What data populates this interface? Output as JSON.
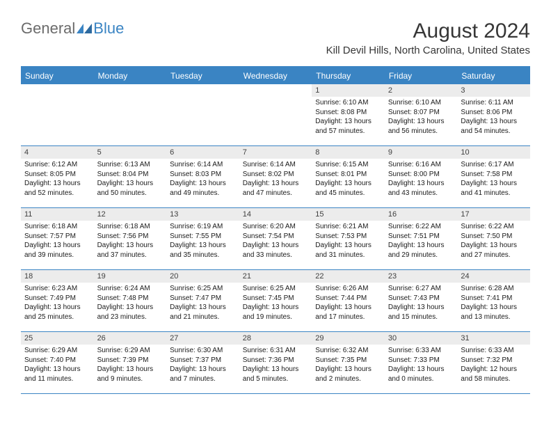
{
  "logo": {
    "word1": "General",
    "word2": "Blue"
  },
  "title": "August 2024",
  "location": "Kill Devil Hills, North Carolina, United States",
  "colors": {
    "accent": "#3a84c3",
    "header_text": "#ffffff",
    "daynum_bg": "#ececec",
    "body_text": "#1a1a1a",
    "logo_gray": "#6b6b6b"
  },
  "day_names": [
    "Sunday",
    "Monday",
    "Tuesday",
    "Wednesday",
    "Thursday",
    "Friday",
    "Saturday"
  ],
  "weeks": [
    [
      {
        "day": "",
        "sunrise": "",
        "sunset": "",
        "daylight": ""
      },
      {
        "day": "",
        "sunrise": "",
        "sunset": "",
        "daylight": ""
      },
      {
        "day": "",
        "sunrise": "",
        "sunset": "",
        "daylight": ""
      },
      {
        "day": "",
        "sunrise": "",
        "sunset": "",
        "daylight": ""
      },
      {
        "day": "1",
        "sunrise": "Sunrise: 6:10 AM",
        "sunset": "Sunset: 8:08 PM",
        "daylight": "Daylight: 13 hours and 57 minutes."
      },
      {
        "day": "2",
        "sunrise": "Sunrise: 6:10 AM",
        "sunset": "Sunset: 8:07 PM",
        "daylight": "Daylight: 13 hours and 56 minutes."
      },
      {
        "day": "3",
        "sunrise": "Sunrise: 6:11 AM",
        "sunset": "Sunset: 8:06 PM",
        "daylight": "Daylight: 13 hours and 54 minutes."
      }
    ],
    [
      {
        "day": "4",
        "sunrise": "Sunrise: 6:12 AM",
        "sunset": "Sunset: 8:05 PM",
        "daylight": "Daylight: 13 hours and 52 minutes."
      },
      {
        "day": "5",
        "sunrise": "Sunrise: 6:13 AM",
        "sunset": "Sunset: 8:04 PM",
        "daylight": "Daylight: 13 hours and 50 minutes."
      },
      {
        "day": "6",
        "sunrise": "Sunrise: 6:14 AM",
        "sunset": "Sunset: 8:03 PM",
        "daylight": "Daylight: 13 hours and 49 minutes."
      },
      {
        "day": "7",
        "sunrise": "Sunrise: 6:14 AM",
        "sunset": "Sunset: 8:02 PM",
        "daylight": "Daylight: 13 hours and 47 minutes."
      },
      {
        "day": "8",
        "sunrise": "Sunrise: 6:15 AM",
        "sunset": "Sunset: 8:01 PM",
        "daylight": "Daylight: 13 hours and 45 minutes."
      },
      {
        "day": "9",
        "sunrise": "Sunrise: 6:16 AM",
        "sunset": "Sunset: 8:00 PM",
        "daylight": "Daylight: 13 hours and 43 minutes."
      },
      {
        "day": "10",
        "sunrise": "Sunrise: 6:17 AM",
        "sunset": "Sunset: 7:58 PM",
        "daylight": "Daylight: 13 hours and 41 minutes."
      }
    ],
    [
      {
        "day": "11",
        "sunrise": "Sunrise: 6:18 AM",
        "sunset": "Sunset: 7:57 PM",
        "daylight": "Daylight: 13 hours and 39 minutes."
      },
      {
        "day": "12",
        "sunrise": "Sunrise: 6:18 AM",
        "sunset": "Sunset: 7:56 PM",
        "daylight": "Daylight: 13 hours and 37 minutes."
      },
      {
        "day": "13",
        "sunrise": "Sunrise: 6:19 AM",
        "sunset": "Sunset: 7:55 PM",
        "daylight": "Daylight: 13 hours and 35 minutes."
      },
      {
        "day": "14",
        "sunrise": "Sunrise: 6:20 AM",
        "sunset": "Sunset: 7:54 PM",
        "daylight": "Daylight: 13 hours and 33 minutes."
      },
      {
        "day": "15",
        "sunrise": "Sunrise: 6:21 AM",
        "sunset": "Sunset: 7:53 PM",
        "daylight": "Daylight: 13 hours and 31 minutes."
      },
      {
        "day": "16",
        "sunrise": "Sunrise: 6:22 AM",
        "sunset": "Sunset: 7:51 PM",
        "daylight": "Daylight: 13 hours and 29 minutes."
      },
      {
        "day": "17",
        "sunrise": "Sunrise: 6:22 AM",
        "sunset": "Sunset: 7:50 PM",
        "daylight": "Daylight: 13 hours and 27 minutes."
      }
    ],
    [
      {
        "day": "18",
        "sunrise": "Sunrise: 6:23 AM",
        "sunset": "Sunset: 7:49 PM",
        "daylight": "Daylight: 13 hours and 25 minutes."
      },
      {
        "day": "19",
        "sunrise": "Sunrise: 6:24 AM",
        "sunset": "Sunset: 7:48 PM",
        "daylight": "Daylight: 13 hours and 23 minutes."
      },
      {
        "day": "20",
        "sunrise": "Sunrise: 6:25 AM",
        "sunset": "Sunset: 7:47 PM",
        "daylight": "Daylight: 13 hours and 21 minutes."
      },
      {
        "day": "21",
        "sunrise": "Sunrise: 6:25 AM",
        "sunset": "Sunset: 7:45 PM",
        "daylight": "Daylight: 13 hours and 19 minutes."
      },
      {
        "day": "22",
        "sunrise": "Sunrise: 6:26 AM",
        "sunset": "Sunset: 7:44 PM",
        "daylight": "Daylight: 13 hours and 17 minutes."
      },
      {
        "day": "23",
        "sunrise": "Sunrise: 6:27 AM",
        "sunset": "Sunset: 7:43 PM",
        "daylight": "Daylight: 13 hours and 15 minutes."
      },
      {
        "day": "24",
        "sunrise": "Sunrise: 6:28 AM",
        "sunset": "Sunset: 7:41 PM",
        "daylight": "Daylight: 13 hours and 13 minutes."
      }
    ],
    [
      {
        "day": "25",
        "sunrise": "Sunrise: 6:29 AM",
        "sunset": "Sunset: 7:40 PM",
        "daylight": "Daylight: 13 hours and 11 minutes."
      },
      {
        "day": "26",
        "sunrise": "Sunrise: 6:29 AM",
        "sunset": "Sunset: 7:39 PM",
        "daylight": "Daylight: 13 hours and 9 minutes."
      },
      {
        "day": "27",
        "sunrise": "Sunrise: 6:30 AM",
        "sunset": "Sunset: 7:37 PM",
        "daylight": "Daylight: 13 hours and 7 minutes."
      },
      {
        "day": "28",
        "sunrise": "Sunrise: 6:31 AM",
        "sunset": "Sunset: 7:36 PM",
        "daylight": "Daylight: 13 hours and 5 minutes."
      },
      {
        "day": "29",
        "sunrise": "Sunrise: 6:32 AM",
        "sunset": "Sunset: 7:35 PM",
        "daylight": "Daylight: 13 hours and 2 minutes."
      },
      {
        "day": "30",
        "sunrise": "Sunrise: 6:33 AM",
        "sunset": "Sunset: 7:33 PM",
        "daylight": "Daylight: 13 hours and 0 minutes."
      },
      {
        "day": "31",
        "sunrise": "Sunrise: 6:33 AM",
        "sunset": "Sunset: 7:32 PM",
        "daylight": "Daylight: 12 hours and 58 minutes."
      }
    ]
  ]
}
